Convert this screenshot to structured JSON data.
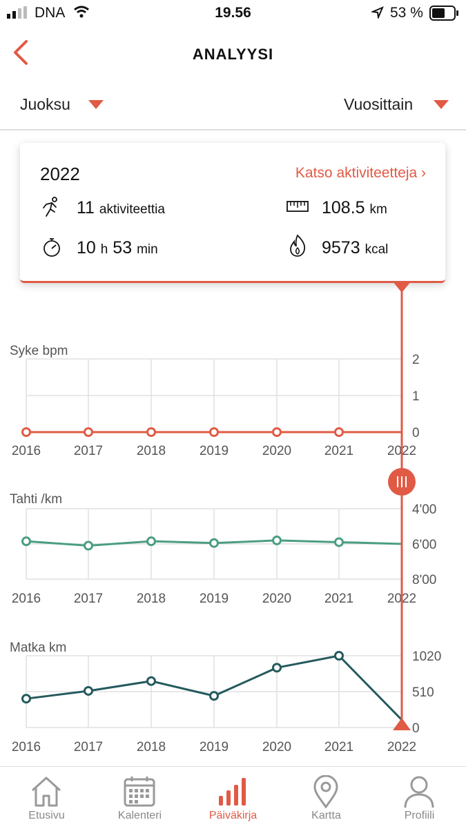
{
  "status_bar": {
    "carrier": "DNA",
    "time": "19.56",
    "battery": "53 %"
  },
  "header": {
    "title": "ANALYYSI"
  },
  "filters": {
    "activity": "Juoksu",
    "period": "Vuosittain"
  },
  "summary": {
    "year": "2022",
    "link": "Katso aktiviteetteja ›",
    "activities_value": "11",
    "activities_unit": "aktiviteettia",
    "distance_value": "108.5",
    "distance_unit": "km",
    "duration_hours": "10",
    "duration_h_unit": "h",
    "duration_minutes": "53",
    "duration_min_unit": "min",
    "calories_value": "9573",
    "calories_unit": "kcal"
  },
  "colors": {
    "accent": "#e05a45",
    "pace": "#4a9e80",
    "distance": "#245a5e"
  },
  "chart_data": [
    {
      "type": "line",
      "title": "Syke bpm",
      "x": [
        "2016",
        "2017",
        "2018",
        "2019",
        "2020",
        "2021",
        "2022"
      ],
      "series": [
        {
          "values": [
            0,
            0,
            0,
            0,
            0,
            0,
            0
          ]
        }
      ],
      "y_ticks": [
        "2",
        "1",
        "0"
      ],
      "ylim": [
        0,
        2
      ]
    },
    {
      "type": "line",
      "title": "Tahti /km",
      "x": [
        "2016",
        "2017",
        "2018",
        "2019",
        "2020",
        "2021",
        "2022"
      ],
      "series": [
        {
          "values": [
            5.85,
            6.1,
            5.85,
            5.95,
            5.8,
            5.9,
            6.0
          ]
        }
      ],
      "y_ticks": [
        "4'00",
        "6'00",
        "8'00"
      ],
      "ylim": [
        4,
        8
      ]
    },
    {
      "type": "line",
      "title": "Matka km",
      "x": [
        "2016",
        "2017",
        "2018",
        "2019",
        "2020",
        "2021",
        "2022"
      ],
      "series": [
        {
          "values": [
            410,
            520,
            660,
            450,
            850,
            1020,
            108.5
          ]
        }
      ],
      "y_ticks": [
        "1020",
        "510",
        "0"
      ],
      "ylim": [
        0,
        1020
      ]
    }
  ],
  "tabs": [
    {
      "label": "Etusivu",
      "icon": "home-icon"
    },
    {
      "label": "Kalenteri",
      "icon": "calendar-icon"
    },
    {
      "label": "Päiväkirja",
      "icon": "bar-chart-icon"
    },
    {
      "label": "Kartta",
      "icon": "map-pin-icon"
    },
    {
      "label": "Profiili",
      "icon": "profile-icon"
    }
  ]
}
